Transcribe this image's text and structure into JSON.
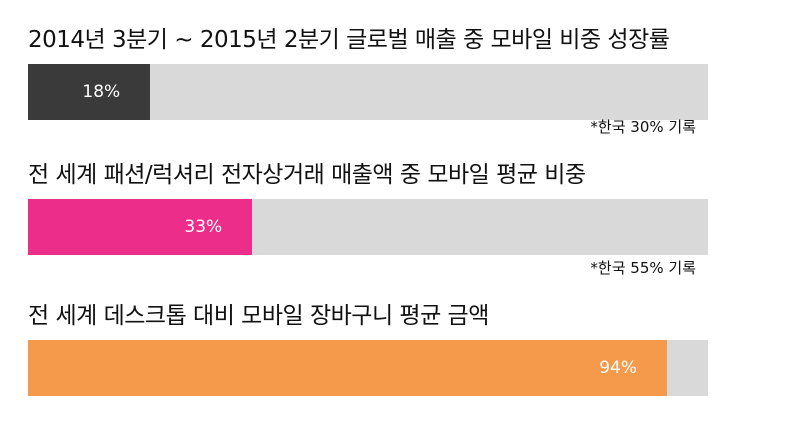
{
  "chart_data": {
    "type": "bar",
    "orientation": "horizontal",
    "xlim": [
      0,
      100
    ],
    "unit": "%",
    "items": [
      {
        "label": "2014년 3분기 ~ 2015년 2분기 글로벌 매출 중 모바일 비중 성장률",
        "value": 18,
        "value_label": "18%",
        "note": "*한국 30% 기록",
        "color": "#3a3a3a"
      },
      {
        "label": "전 세계 패션/럭셔리 전자상거래 매출액 중 모바일 평균 비중",
        "value": 33,
        "value_label": "33%",
        "note": "*한국 55% 기록",
        "color": "#ec2d8a"
      },
      {
        "label": "전 세계 데스크톱 대비 모바일 장바구니 평균 금액",
        "value": 94,
        "value_label": "94%",
        "note": "",
        "color": "#f59a4a"
      }
    ]
  },
  "colors": {
    "track": "#d9d9d9",
    "text": "#111111",
    "value_text": "#ffffff"
  }
}
